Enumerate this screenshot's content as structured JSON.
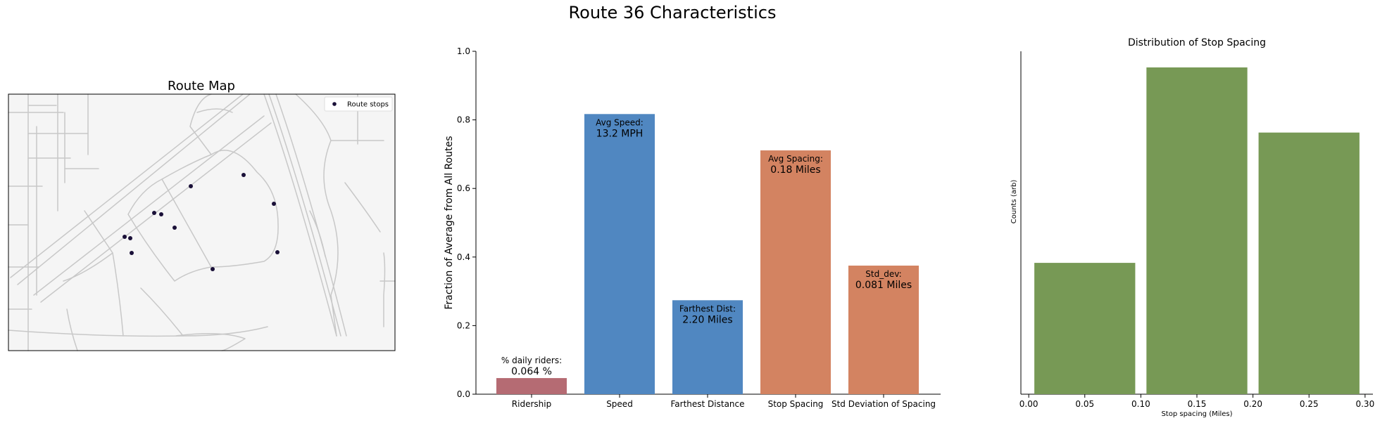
{
  "figure": {
    "title": "Route 36 Characteristics"
  },
  "map_panel": {
    "title": "Route Map",
    "legend_label": "Route stops",
    "stop_color": "#1a1038",
    "road_color": "#c8c8c8",
    "land_color": "#f5f5f5"
  },
  "chart_data": [
    {
      "type": "bar",
      "title": "",
      "xlabel": "",
      "ylabel": "Fraction of Average from All Routes",
      "ylim": [
        0,
        1.0
      ],
      "yticks": [
        "0.0",
        "0.2",
        "0.4",
        "0.6",
        "0.8",
        "1.0"
      ],
      "ytick_values": [
        0,
        0.2,
        0.4,
        0.6,
        0.8,
        1.0
      ],
      "categories": [
        "Ridership",
        "Speed",
        "Farthest Distance",
        "Stop Spacing",
        "Std Deviation of Spacing"
      ],
      "values": [
        0.047,
        0.817,
        0.274,
        0.711,
        0.375
      ],
      "colors": [
        "#b56b73",
        "#5087c1",
        "#5087c1",
        "#d38361",
        "#d38361"
      ],
      "annotations": [
        {
          "label": "% daily riders:",
          "value": "0.064 %",
          "placement": "above"
        },
        {
          "label": "Avg Speed:",
          "value": "13.2 MPH",
          "placement": "inside"
        },
        {
          "label": "Farthest Dist:",
          "value": "2.20 Miles",
          "placement": "inside"
        },
        {
          "label": "Avg Spacing:",
          "value": "0.18 Miles",
          "placement": "inside"
        },
        {
          "label": "Std_dev:",
          "value": "0.081 Miles",
          "placement": "inside"
        }
      ],
      "grid": false
    },
    {
      "type": "bar",
      "title": "Distribution of Stop Spacing",
      "xlabel": "Stop spacing (Miles)",
      "ylabel": "Counts (arb)",
      "xlim": [
        -0.007,
        0.307
      ],
      "xticks": [
        "0.00",
        "0.05",
        "0.10",
        "0.15",
        "0.20",
        "0.25",
        "0.30"
      ],
      "xtick_values": [
        0,
        0.05,
        0.1,
        0.15,
        0.2,
        0.25,
        0.3
      ],
      "ylim": [
        0,
        1.0
      ],
      "bins": [
        [
          0.005,
          0.095
        ],
        [
          0.105,
          0.195
        ],
        [
          0.205,
          0.295
        ]
      ],
      "values": [
        0.383,
        0.953,
        0.763
      ],
      "color": "#779955",
      "grid": false
    }
  ]
}
